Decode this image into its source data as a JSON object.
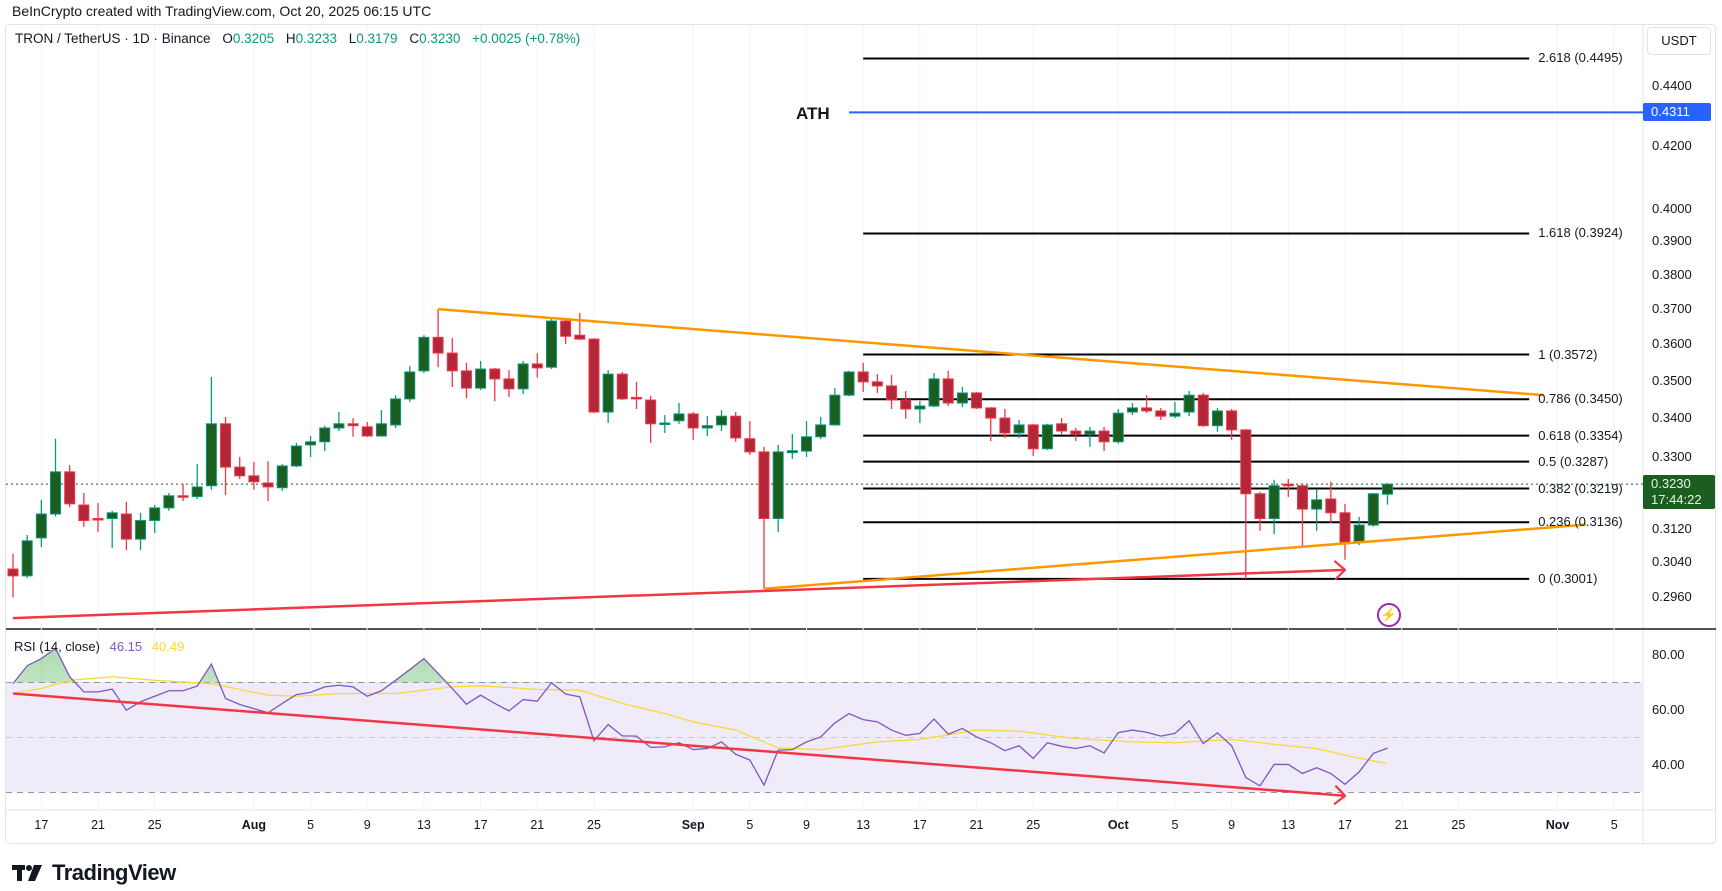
{
  "header": {
    "note": "BeInCrypto created with TradingView.com, Oct 20, 2025 06:15 UTC"
  },
  "legend": {
    "symbol": "TRON / TetherUS · 1D · Binance",
    "open_key": "O",
    "open": "0.3205",
    "high_key": "H",
    "high": "0.3233",
    "low_key": "L",
    "low": "0.3179",
    "close_key": "C",
    "close": "0.3230",
    "change": "+0.0025 (+0.78%)"
  },
  "currency_button": "USDT",
  "colors": {
    "up_body": "#1b5e20",
    "up_border": "#089981",
    "down_body": "#b2283a",
    "down_border": "#f23645",
    "trendline_orange": "#ff9800",
    "trendline_red": "#f23645",
    "ath_line": "#2962ff",
    "rsi_line": "#7e57c2",
    "rsi_ma": "#fdd835",
    "rsi_band_fill": "#efebf8",
    "fib_line": "#000000"
  },
  "price_axis": {
    "scale": "log",
    "labels": [
      "0.4400",
      "0.4200",
      "0.4000",
      "0.3900",
      "0.3800",
      "0.3700",
      "0.3600",
      "0.3500",
      "0.3400",
      "0.3300",
      "0.3120",
      "0.3040",
      "0.2960"
    ],
    "last_price": "0.3230",
    "countdown": "17:44:22",
    "ath_price": "0.4311"
  },
  "rsi_axis": {
    "labels": [
      "80.00",
      "60.00",
      "40.00"
    ],
    "bands": [
      70,
      50,
      30
    ]
  },
  "time_axis": {
    "labels": [
      {
        "label": "17",
        "date": "2025-07-17"
      },
      {
        "label": "21",
        "date": "2025-07-21"
      },
      {
        "label": "25",
        "date": "2025-07-25"
      },
      {
        "label": "Aug",
        "date": "2025-08-01",
        "month": true
      },
      {
        "label": "5",
        "date": "2025-08-05"
      },
      {
        "label": "9",
        "date": "2025-08-09"
      },
      {
        "label": "13",
        "date": "2025-08-13"
      },
      {
        "label": "17",
        "date": "2025-08-17"
      },
      {
        "label": "21",
        "date": "2025-08-21"
      },
      {
        "label": "25",
        "date": "2025-08-25"
      },
      {
        "label": "Sep",
        "date": "2025-09-01",
        "month": true
      },
      {
        "label": "5",
        "date": "2025-09-05"
      },
      {
        "label": "9",
        "date": "2025-09-09"
      },
      {
        "label": "13",
        "date": "2025-09-13"
      },
      {
        "label": "17",
        "date": "2025-09-17"
      },
      {
        "label": "21",
        "date": "2025-09-21"
      },
      {
        "label": "25",
        "date": "2025-09-25"
      },
      {
        "label": "Oct",
        "date": "2025-10-01",
        "month": true
      },
      {
        "label": "5",
        "date": "2025-10-05"
      },
      {
        "label": "9",
        "date": "2025-10-09"
      },
      {
        "label": "13",
        "date": "2025-10-13"
      },
      {
        "label": "17",
        "date": "2025-10-17"
      },
      {
        "label": "21",
        "date": "2025-10-21"
      },
      {
        "label": "25",
        "date": "2025-10-25"
      },
      {
        "label": "Nov",
        "date": "2025-11-01",
        "month": true
      },
      {
        "label": "5",
        "date": "2025-11-05"
      }
    ]
  },
  "annotations": {
    "ath": {
      "label": "ATH",
      "price": 0.4311,
      "from": "2025-09-12"
    },
    "fib": {
      "from": "2025-09-13",
      "to": "2025-10-30",
      "levels": [
        {
          "ratio": "2.618",
          "price": 0.4495,
          "label": "2.618 (0.4495)"
        },
        {
          "ratio": "1.618",
          "price": 0.3924,
          "label": "1.618 (0.3924)"
        },
        {
          "ratio": "1",
          "price": 0.3572,
          "label": "1 (0.3572)"
        },
        {
          "ratio": "0.786",
          "price": 0.345,
          "label": "0.786 (0.3450)"
        },
        {
          "ratio": "0.618",
          "price": 0.3354,
          "label": "0.618 (0.3354)"
        },
        {
          "ratio": "0.5",
          "price": 0.3287,
          "label": "0.5 (0.3287)"
        },
        {
          "ratio": "0.382",
          "price": 0.3219,
          "label": "0.382 (0.3219)"
        },
        {
          "ratio": "0.236",
          "price": 0.3136,
          "label": "0.236 (0.3136)"
        },
        {
          "ratio": "0",
          "price": 0.3001,
          "label": "0 (0.3001)"
        }
      ]
    },
    "trendlines": [
      {
        "name": "upper-triangle-line",
        "color": "#ff9800",
        "start": {
          "date": "2025-08-14",
          "price": 0.37
        },
        "end": {
          "date": "2025-10-31",
          "price": 0.3461
        }
      },
      {
        "name": "lower-triangle-line",
        "color": "#ff9800",
        "start": {
          "date": "2025-09-06",
          "price": 0.2978
        },
        "end": {
          "date": "2025-11-03",
          "price": 0.313
        }
      },
      {
        "name": "price-higher-low-line",
        "color": "#f23645",
        "arrow": true,
        "start": {
          "date": "2025-07-15",
          "price": 0.2911
        },
        "end": {
          "date": "2025-10-17",
          "price": 0.3022
        }
      }
    ],
    "rsi_trendline": {
      "color": "#f23645",
      "arrow": true,
      "start": {
        "date": "2025-07-15",
        "rsi": 66.0
      },
      "end": {
        "date": "2025-10-17",
        "rsi": 28.8
      }
    }
  },
  "chart_data": {
    "type": "candlestick",
    "title": "TRON / TetherUS · 1D · Binance",
    "yscale": "log",
    "ylim": [
      0.292,
      0.456
    ],
    "grid": false,
    "candle_columns": [
      "date",
      "open",
      "high",
      "low",
      "close"
    ],
    "candles": [
      [
        "2025-07-15",
        0.3024,
        0.306,
        0.2958,
        0.3008
      ],
      [
        "2025-07-16",
        0.3008,
        0.3105,
        0.3003,
        0.3091
      ],
      [
        "2025-07-17",
        0.3098,
        0.3191,
        0.3076,
        0.3156
      ],
      [
        "2025-07-18",
        0.3156,
        0.3346,
        0.315,
        0.3261
      ],
      [
        "2025-07-19",
        0.3261,
        0.3278,
        0.3173,
        0.3181
      ],
      [
        "2025-07-20",
        0.3178,
        0.3208,
        0.3125,
        0.314
      ],
      [
        "2025-07-21",
        0.3145,
        0.3183,
        0.3112,
        0.3143
      ],
      [
        "2025-07-22",
        0.3145,
        0.3164,
        0.3074,
        0.3159
      ],
      [
        "2025-07-23",
        0.3156,
        0.3186,
        0.3069,
        0.3095
      ],
      [
        "2025-07-24",
        0.3095,
        0.3159,
        0.3069,
        0.314
      ],
      [
        "2025-07-25",
        0.314,
        0.3178,
        0.311,
        0.3171
      ],
      [
        "2025-07-26",
        0.3171,
        0.3208,
        0.3164,
        0.3201
      ],
      [
        "2025-07-27",
        0.3201,
        0.3231,
        0.3188,
        0.3199
      ],
      [
        "2025-07-28",
        0.3199,
        0.3281,
        0.3193,
        0.3223
      ],
      [
        "2025-07-29",
        0.3226,
        0.351,
        0.3216,
        0.3385
      ],
      [
        "2025-07-30",
        0.3385,
        0.3403,
        0.3203,
        0.3273
      ],
      [
        "2025-07-31",
        0.3273,
        0.3299,
        0.3243,
        0.3251
      ],
      [
        "2025-08-01",
        0.3251,
        0.3286,
        0.3216,
        0.3236
      ],
      [
        "2025-08-02",
        0.3233,
        0.3288,
        0.3188,
        0.3223
      ],
      [
        "2025-08-03",
        0.3221,
        0.3281,
        0.3213,
        0.3276
      ],
      [
        "2025-08-04",
        0.3276,
        0.3335,
        0.3273,
        0.3327
      ],
      [
        "2025-08-05",
        0.333,
        0.3353,
        0.3299,
        0.3338
      ],
      [
        "2025-08-06",
        0.3338,
        0.338,
        0.3314,
        0.3374
      ],
      [
        "2025-08-07",
        0.3374,
        0.3416,
        0.3366,
        0.3385
      ],
      [
        "2025-08-08",
        0.3385,
        0.34,
        0.3351,
        0.338
      ],
      [
        "2025-08-09",
        0.3377,
        0.339,
        0.3351,
        0.3353
      ],
      [
        "2025-08-10",
        0.3353,
        0.3421,
        0.3351,
        0.3385
      ],
      [
        "2025-08-11",
        0.3382,
        0.3461,
        0.3374,
        0.3451
      ],
      [
        "2025-08-12",
        0.3451,
        0.354,
        0.3443,
        0.3524
      ],
      [
        "2025-08-13",
        0.3527,
        0.3626,
        0.3521,
        0.362
      ],
      [
        "2025-08-14",
        0.362,
        0.37,
        0.3537,
        0.3576
      ],
      [
        "2025-08-15",
        0.3576,
        0.3618,
        0.3483,
        0.3527
      ],
      [
        "2025-08-16",
        0.3527,
        0.3549,
        0.3453,
        0.348
      ],
      [
        "2025-08-17",
        0.348,
        0.3554,
        0.3475,
        0.3532
      ],
      [
        "2025-08-18",
        0.3532,
        0.3535,
        0.3445,
        0.3505
      ],
      [
        "2025-08-19",
        0.3505,
        0.3529,
        0.3456,
        0.3478
      ],
      [
        "2025-08-20",
        0.3478,
        0.3554,
        0.3464,
        0.3546
      ],
      [
        "2025-08-21",
        0.3546,
        0.3576,
        0.3508,
        0.3535
      ],
      [
        "2025-08-22",
        0.3537,
        0.3675,
        0.3532,
        0.3666
      ],
      [
        "2025-08-23",
        0.3666,
        0.3672,
        0.3601,
        0.3623
      ],
      [
        "2025-08-24",
        0.3626,
        0.3689,
        0.3612,
        0.3615
      ],
      [
        "2025-08-25",
        0.3615,
        0.3618,
        0.3413,
        0.3416
      ],
      [
        "2025-08-26",
        0.3416,
        0.3529,
        0.3387,
        0.3518
      ],
      [
        "2025-08-27",
        0.3518,
        0.3524,
        0.3448,
        0.3451
      ],
      [
        "2025-08-28",
        0.3455,
        0.3497,
        0.3424,
        0.3451
      ],
      [
        "2025-08-29",
        0.3448,
        0.3459,
        0.3335,
        0.3385
      ],
      [
        "2025-08-30",
        0.3385,
        0.3408,
        0.3361,
        0.3387
      ],
      [
        "2025-08-31",
        0.3393,
        0.344,
        0.3385,
        0.3411
      ],
      [
        "2025-09-01",
        0.3411,
        0.3416,
        0.3343,
        0.3374
      ],
      [
        "2025-09-02",
        0.3374,
        0.3405,
        0.3353,
        0.338
      ],
      [
        "2025-09-03",
        0.3382,
        0.3421,
        0.3366,
        0.3405
      ],
      [
        "2025-09-04",
        0.3405,
        0.3416,
        0.3338,
        0.3348
      ],
      [
        "2025-09-05",
        0.3346,
        0.3392,
        0.3304,
        0.3312
      ],
      [
        "2025-09-06",
        0.3312,
        0.3325,
        0.2978,
        0.3145
      ],
      [
        "2025-09-07",
        0.3145,
        0.333,
        0.3112,
        0.3312
      ],
      [
        "2025-09-08",
        0.331,
        0.3358,
        0.3294,
        0.3315
      ],
      [
        "2025-09-09",
        0.3314,
        0.3392,
        0.3299,
        0.3351
      ],
      [
        "2025-09-10",
        0.3351,
        0.3403,
        0.3345,
        0.3382
      ],
      [
        "2025-09-11",
        0.3382,
        0.348,
        0.338,
        0.3461
      ],
      [
        "2025-09-12",
        0.3461,
        0.3527,
        0.3458,
        0.3524
      ],
      [
        "2025-09-13",
        0.3524,
        0.3549,
        0.347,
        0.3497
      ],
      [
        "2025-09-14",
        0.3497,
        0.3518,
        0.3467,
        0.3486
      ],
      [
        "2025-09-15",
        0.3486,
        0.3516,
        0.3424,
        0.3448
      ],
      [
        "2025-09-16",
        0.3448,
        0.3472,
        0.3398,
        0.3424
      ],
      [
        "2025-09-17",
        0.3424,
        0.3445,
        0.3387,
        0.3432
      ],
      [
        "2025-09-18",
        0.3432,
        0.3521,
        0.3429,
        0.3505
      ],
      [
        "2025-09-19",
        0.3505,
        0.3527,
        0.3432,
        0.344
      ],
      [
        "2025-09-20",
        0.344,
        0.3483,
        0.3429,
        0.3467
      ],
      [
        "2025-09-21",
        0.3467,
        0.347,
        0.3424,
        0.3427
      ],
      [
        "2025-09-22",
        0.3427,
        0.3429,
        0.334,
        0.34
      ],
      [
        "2025-09-23",
        0.34,
        0.3424,
        0.3348,
        0.3361
      ],
      [
        "2025-09-24",
        0.3361,
        0.3395,
        0.3348,
        0.3382
      ],
      [
        "2025-09-25",
        0.3382,
        0.3385,
        0.3301,
        0.332
      ],
      [
        "2025-09-26",
        0.332,
        0.3385,
        0.3317,
        0.3382
      ],
      [
        "2025-09-27",
        0.3385,
        0.34,
        0.3358,
        0.3366
      ],
      [
        "2025-09-28",
        0.3366,
        0.3374,
        0.334,
        0.3358
      ],
      [
        "2025-09-29",
        0.3358,
        0.3377,
        0.3325,
        0.3366
      ],
      [
        "2025-09-30",
        0.3366,
        0.3377,
        0.3314,
        0.3338
      ],
      [
        "2025-10-01",
        0.3338,
        0.3424,
        0.3333,
        0.3413
      ],
      [
        "2025-10-02",
        0.3416,
        0.344,
        0.3408,
        0.3427
      ],
      [
        "2025-10-03",
        0.3427,
        0.3461,
        0.3413,
        0.3419
      ],
      [
        "2025-10-04",
        0.3419,
        0.3427,
        0.3395,
        0.3405
      ],
      [
        "2025-10-05",
        0.3405,
        0.3443,
        0.34,
        0.3413
      ],
      [
        "2025-10-06",
        0.3416,
        0.3472,
        0.3405,
        0.3461
      ],
      [
        "2025-10-07",
        0.3461,
        0.3467,
        0.3377,
        0.338
      ],
      [
        "2025-10-08",
        0.338,
        0.3427,
        0.3364,
        0.3419
      ],
      [
        "2025-10-09",
        0.3419,
        0.3424,
        0.3343,
        0.3369
      ],
      [
        "2025-10-10",
        0.3369,
        0.3371,
        0.3001,
        0.3206
      ],
      [
        "2025-10-11",
        0.3206,
        0.3211,
        0.3115,
        0.3145
      ],
      [
        "2025-10-12",
        0.3145,
        0.3241,
        0.3107,
        0.3226
      ],
      [
        "2025-10-13",
        0.323,
        0.3243,
        0.3198,
        0.3226
      ],
      [
        "2025-10-14",
        0.3226,
        0.323,
        0.3076,
        0.3168
      ],
      [
        "2025-10-15",
        0.3168,
        0.3216,
        0.3115,
        0.3191
      ],
      [
        "2025-10-16",
        0.3193,
        0.3236,
        0.3134,
        0.3159
      ],
      [
        "2025-10-17",
        0.3159,
        0.3181,
        0.3046,
        0.3088
      ],
      [
        "2025-10-18",
        0.3088,
        0.3149,
        0.3081,
        0.3129
      ],
      [
        "2025-10-19",
        0.3129,
        0.3208,
        0.3125,
        0.3206
      ],
      [
        "2025-10-20",
        0.3205,
        0.3233,
        0.3179,
        0.323
      ]
    ],
    "rsi": {
      "label": "RSI (14, close)",
      "value": "46.15",
      "ma_value": "40.49",
      "ylim": [
        25,
        85
      ],
      "values": [
        69.6,
        76.1,
        78.7,
        82.4,
        72.1,
        66.6,
        66.6,
        67.6,
        59.9,
        63.0,
        65.0,
        67.0,
        67.0,
        68.7,
        76.7,
        64.2,
        62.0,
        60.5,
        59.0,
        62.4,
        65.6,
        66.4,
        68.4,
        69.0,
        68.4,
        65.0,
        67.0,
        70.8,
        74.7,
        78.7,
        73.3,
        67.8,
        62.1,
        65.4,
        62.4,
        59.7,
        63.8,
        63.2,
        69.9,
        65.8,
        64.8,
        48.8,
        54.7,
        50.6,
        50.5,
        46.4,
        46.6,
        48.1,
        45.6,
        46.0,
        48.4,
        43.9,
        41.8,
        32.7,
        45.4,
        45.6,
        48.4,
        50.2,
        55.3,
        58.7,
        56.5,
        55.7,
        52.7,
        50.8,
        51.5,
        56.7,
        51.2,
        53.3,
        50.2,
        48.1,
        45.2,
        47.0,
        42.4,
        48.1,
        46.8,
        46.0,
        47.0,
        44.4,
        51.8,
        52.7,
        51.9,
        50.5,
        51.5,
        56.1,
        47.8,
        51.7,
        47.0,
        35.5,
        32.4,
        40.2,
        40.2,
        36.9,
        39.0,
        36.9,
        33.0,
        37.5,
        44.2,
        46.15
      ],
      "ma_points": [
        [
          "2025-07-15",
          66.0
        ],
        [
          "2025-07-17",
          67.8
        ],
        [
          "2025-07-19",
          70.8
        ],
        [
          "2025-07-22",
          72.1
        ],
        [
          "2025-07-25",
          70.8
        ],
        [
          "2025-07-29",
          69.6
        ],
        [
          "2025-08-02",
          65.4
        ],
        [
          "2025-08-04",
          65.0
        ],
        [
          "2025-08-07",
          66.0
        ],
        [
          "2025-08-11",
          66.0
        ],
        [
          "2025-08-15",
          68.4
        ],
        [
          "2025-08-17",
          68.8
        ],
        [
          "2025-08-21",
          67.5
        ],
        [
          "2025-08-24",
          67.2
        ],
        [
          "2025-08-27",
          62.4
        ],
        [
          "2025-08-30",
          58.7
        ],
        [
          "2025-09-01",
          55.7
        ],
        [
          "2025-09-04",
          52.7
        ],
        [
          "2025-09-07",
          46.2
        ],
        [
          "2025-09-10",
          45.6
        ],
        [
          "2025-09-14",
          48.4
        ],
        [
          "2025-09-17",
          49.3
        ],
        [
          "2025-09-21",
          52.7
        ],
        [
          "2025-09-24",
          52.3
        ],
        [
          "2025-09-28",
          49.6
        ],
        [
          "2025-10-02",
          48.4
        ],
        [
          "2025-10-05",
          48.1
        ],
        [
          "2025-10-09",
          49.3
        ],
        [
          "2025-10-12",
          47.5
        ],
        [
          "2025-10-15",
          46.0
        ],
        [
          "2025-10-18",
          42.4
        ],
        [
          "2025-10-20",
          40.49
        ]
      ]
    }
  },
  "branding": {
    "logo_text": "TradingView"
  }
}
